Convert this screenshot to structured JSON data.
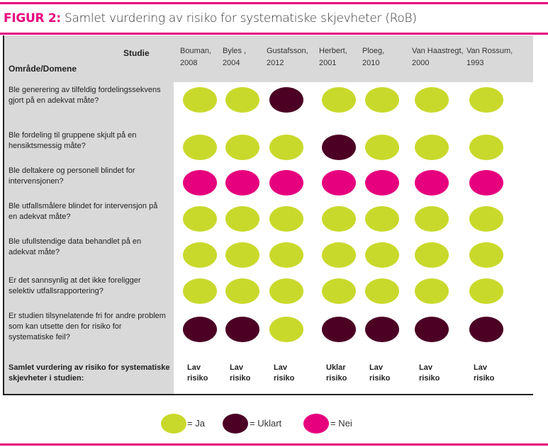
{
  "title": {
    "prefix": "FIGUR 2:",
    "text": " Samlet vurdering av risiko for systematiske skjevheter (RoB)"
  },
  "header": {
    "studie": "Studie",
    "domain": "Område/Domene"
  },
  "studies": [
    {
      "name": "Bouman,",
      "year": "2008"
    },
    {
      "name": "Byles ,",
      "year": "2004"
    },
    {
      "name": "Gustafsson,",
      "year": "2012"
    },
    {
      "name": "Herbert,",
      "year": "2001"
    },
    {
      "name": "Ploeg,",
      "year": "2010"
    },
    {
      "name": "Van Haastregt,",
      "year": "2000"
    },
    {
      "name": "Van Rossum,",
      "year": "1993"
    }
  ],
  "colors": {
    "ja": "#c9d92b",
    "uklart": "#4b0024",
    "nei": "#e6007e"
  },
  "rows": [
    {
      "question": "Ble generering av tilfeldig fordelingssekvens gjort på en adekvat måte?",
      "values": [
        "ja",
        "ja",
        "uklart",
        "ja",
        "ja",
        "ja",
        "ja"
      ]
    },
    {
      "question": "Ble fordeling til gruppene skjult på en hensiktsmessig måte?",
      "values": [
        "ja",
        "ja",
        "ja",
        "uklart",
        "ja",
        "ja",
        "ja"
      ]
    },
    {
      "question": "Ble deltakere og personell blindet for intervensjonen?",
      "values": [
        "nei",
        "nei",
        "nei",
        "nei",
        "nei",
        "nei",
        "nei"
      ]
    },
    {
      "question": "Ble utfallsmålere blindet for intervensjon på en adekvat måte?",
      "values": [
        "ja",
        "ja",
        "ja",
        "ja",
        "ja",
        "ja",
        "ja"
      ]
    },
    {
      "question": "Ble ufullstendige data behandlet på en adekvat måte?",
      "values": [
        "ja",
        "ja",
        "ja",
        "ja",
        "ja",
        "ja",
        "ja"
      ]
    },
    {
      "question": "Er det sannsynlig at det ikke foreligger selektiv utfallsrapportering?",
      "values": [
        "ja",
        "ja",
        "ja",
        "ja",
        "ja",
        "ja",
        "ja"
      ]
    },
    {
      "question": "Er studien tilsynelatende fri for andre problem som kan utsette den for risiko for systematiske feil?",
      "values": [
        "uklart",
        "uklart",
        "ja",
        "uklart",
        "uklart",
        "uklart",
        "uklart"
      ]
    }
  ],
  "summary": {
    "label": "Samlet vurdering av risiko for systematiske skjevheter i studien:",
    "values": [
      [
        "Lav",
        "risiko"
      ],
      [
        "Lav",
        "risiko"
      ],
      [
        "Lav",
        "risiko"
      ],
      [
        "Uklar",
        "risiko"
      ],
      [
        "Lav",
        "risiko"
      ],
      [
        "Lav",
        "risiko"
      ],
      [
        "Lav",
        "risiko"
      ]
    ]
  },
  "legend": [
    {
      "key": "ja",
      "label": "= Ja"
    },
    {
      "key": "uklart",
      "label": "= Uklart"
    },
    {
      "key": "nei",
      "label": "= Nei"
    }
  ]
}
